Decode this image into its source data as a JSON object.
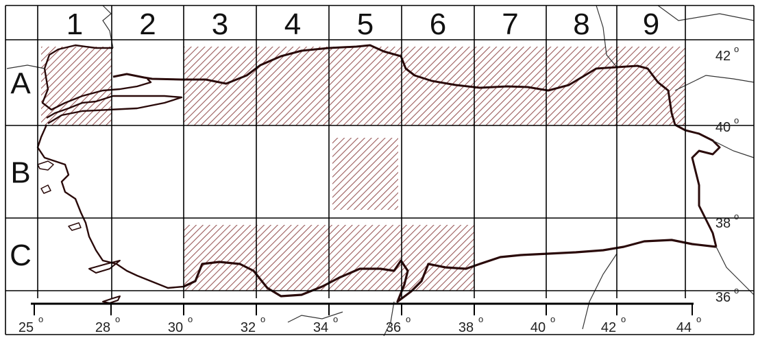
{
  "map": {
    "columns": [
      "1",
      "2",
      "3",
      "4",
      "5",
      "6",
      "7",
      "8",
      "9"
    ],
    "rows": [
      "A",
      "B",
      "C"
    ],
    "lon_labels": [
      "25",
      "28",
      "30",
      "32",
      "34",
      "36",
      "38",
      "40",
      "42",
      "44"
    ],
    "lat_labels": [
      "42",
      "40",
      "38",
      "36"
    ],
    "degree_symbol": "o",
    "hatched_squares": [
      "A1",
      "A3",
      "A4",
      "A5",
      "A6",
      "A7",
      "A8",
      "A9",
      "B5",
      "C3",
      "C4",
      "C5",
      "C6"
    ],
    "colors": {
      "grid": "#000000",
      "hatch": "#9a5a5a",
      "coastline": "#2a0a0a",
      "borders": "#333333"
    }
  }
}
